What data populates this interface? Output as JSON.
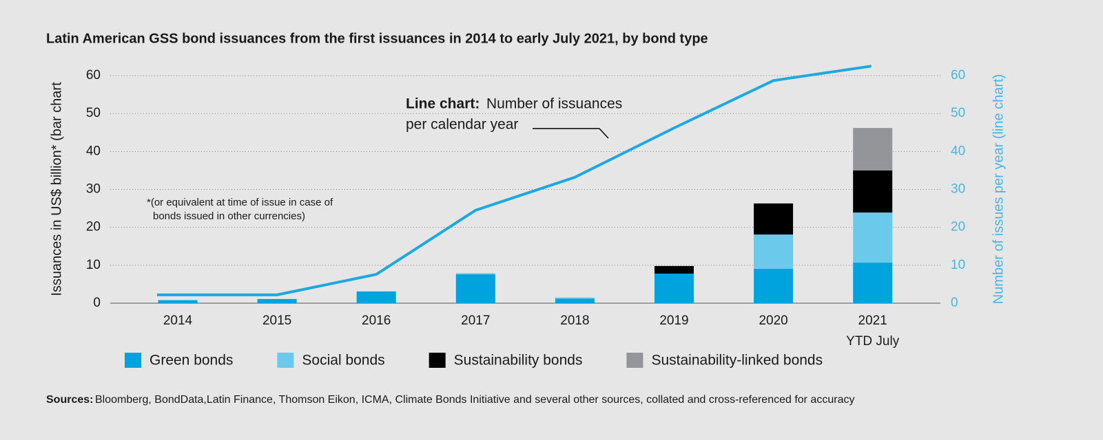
{
  "chart_data": {
    "type": "combo",
    "title": "Latin American GSS bond issuances from the first issuances in 2014 to early July 2021, by bond type",
    "y_label": "Issuances in US$ billion* (bar chart",
    "y2_label": "Number of issues per year (line chart)",
    "categories": [
      "2014",
      "2015",
      "2016",
      "2017",
      "2018",
      "2019",
      "2020",
      "2021"
    ],
    "x_note": "YTD July",
    "ylim": [
      0,
      60
    ],
    "yticks": [
      0,
      10,
      20,
      30,
      40,
      50,
      60
    ],
    "y2lim": [
      0,
      60
    ],
    "y2ticks": [
      0,
      10,
      20,
      30,
      40,
      50,
      60
    ],
    "grid": true,
    "series": [
      {
        "name": "Green bonds",
        "type": "bar",
        "color": "#00a3de",
        "values": [
          0.8,
          1.1,
          3.1,
          7.6,
          1.2,
          7.8,
          9.1,
          10.7
        ]
      },
      {
        "name": "Social bonds",
        "type": "bar",
        "color": "#6bcaeb",
        "values": [
          0,
          0,
          0,
          0.3,
          0.3,
          0,
          9.0,
          13.2
        ]
      },
      {
        "name": "Sustainability bonds",
        "type": "bar",
        "color": "#000000",
        "values": [
          0,
          0,
          0,
          0,
          0,
          2.0,
          8.2,
          11.1
        ]
      },
      {
        "name": "Sustainability-linked bonds",
        "type": "bar",
        "color": "#939598",
        "values": [
          0,
          0,
          0,
          0,
          0,
          0,
          0,
          11.2
        ]
      },
      {
        "type": "line",
        "axis": "y2",
        "color": "#1da8e0",
        "values": [
          2.2,
          2.2,
          7.6,
          24.5,
          33.2,
          46.2,
          58.7,
          62.5
        ]
      }
    ],
    "annotation": {
      "bold": "Line chart:",
      "lines": [
        "Number of issuances",
        "per calendar year"
      ]
    },
    "footnote": [
      "*(or equivalent at time of issue in case of",
      "bonds issued in other currencies)"
    ],
    "source": {
      "bold": "Sources:",
      "text": " Bloomberg, BondData,Latin Finance, Thomson Eikon, ICMA, Climate Bonds Initiative and several other sources, collated and cross-referenced for accuracy"
    }
  }
}
